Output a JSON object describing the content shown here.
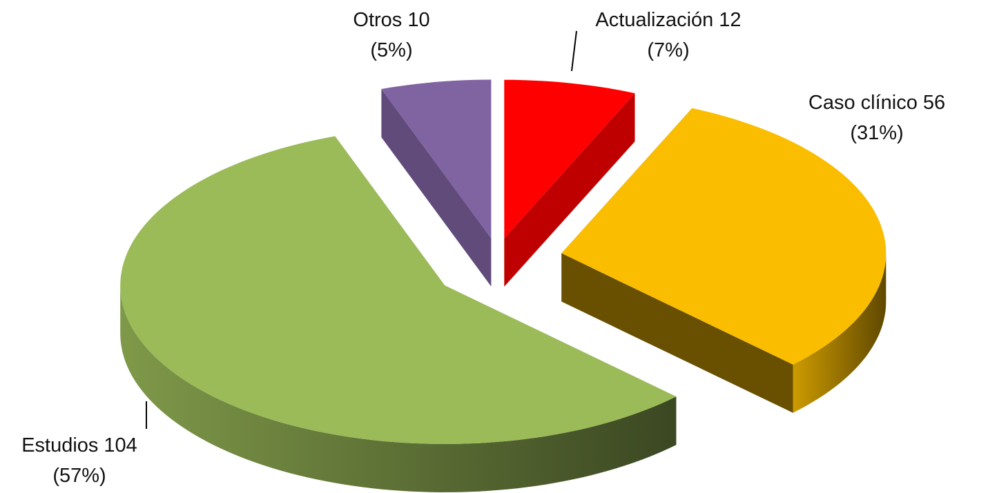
{
  "chart_data": {
    "type": "pie3d",
    "categories": [
      "Actualización",
      "Caso clínico",
      "Estudios",
      "Otros"
    ],
    "values": [
      12,
      56,
      104,
      10
    ],
    "percentages": [
      7,
      31,
      57,
      5
    ],
    "percentage_labels": [
      "(7%)",
      "(31%)",
      "(57%)",
      "(5%)"
    ],
    "colors": [
      "#ff0000",
      "#fabd00",
      "#9bbb59",
      "#8064a2"
    ]
  }
}
